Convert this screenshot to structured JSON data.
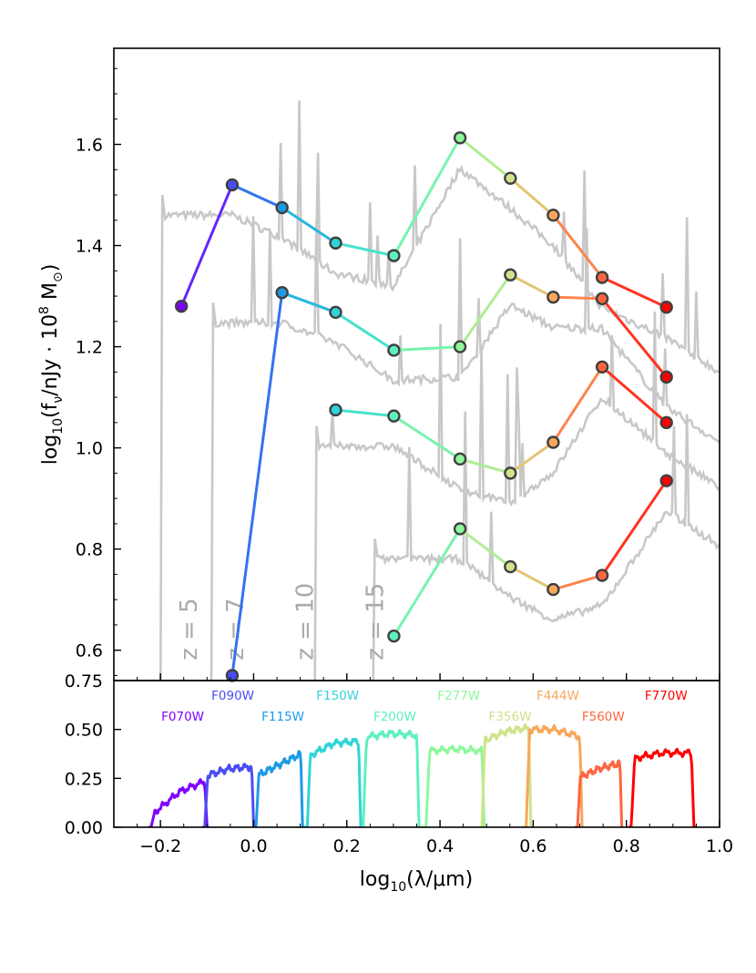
{
  "chart_data": [
    {
      "type": "line",
      "title": "",
      "ylabel": "log10(fν/nJy · 10^8 M⊙)",
      "ylabel_parts": {
        "prefix": "log",
        "sub": "10",
        "paren_open": "(f",
        "nu": "ν",
        "slash": "/nJy · 10",
        "exp": "8",
        "unit": " M",
        "sun": "⊙",
        "paren_close": ")"
      },
      "xlim": [
        -0.3,
        1.0
      ],
      "ylim": [
        0.54,
        1.79
      ],
      "y_ticks": [
        0.6,
        0.8,
        1.0,
        1.2,
        1.4,
        1.6
      ],
      "y_tick_labels": [
        "0.6",
        "0.8",
        "1.0",
        "1.2",
        "1.4",
        "1.6"
      ],
      "redshift_labels": [
        {
          "text": "z = 5",
          "x": -0.14
        },
        {
          "text": "z = 7",
          "x": -0.04
        },
        {
          "text": "z = 10",
          "x": 0.11
        },
        {
          "text": "z = 15",
          "x": 0.26
        }
      ],
      "filter_wavelengths": [
        -0.155,
        -0.046,
        0.061,
        0.176,
        0.301,
        0.443,
        0.551,
        0.643,
        0.748,
        0.886
      ],
      "series": [
        {
          "name": "z = 5",
          "x": [
            -0.155,
            -0.046,
            0.061,
            0.176,
            0.301,
            0.443,
            0.551,
            0.643,
            0.748,
            0.886
          ],
          "y": [
            1.28,
            1.52,
            1.475,
            1.405,
            1.38,
            1.613,
            1.533,
            1.46,
            1.337,
            1.278
          ]
        },
        {
          "name": "z = 7",
          "x": [
            -0.046,
            0.061,
            0.176,
            0.301,
            0.443,
            0.551,
            0.643,
            0.748,
            0.886
          ],
          "y": [
            0.55,
            1.307,
            1.268,
            1.193,
            1.2,
            1.342,
            1.298,
            1.295,
            1.14
          ]
        },
        {
          "name": "z = 10",
          "x": [
            0.176,
            0.301,
            0.443,
            0.551,
            0.643,
            0.748,
            0.886
          ],
          "y": [
            1.075,
            1.063,
            0.978,
            0.95,
            1.011,
            1.16,
            1.05
          ]
        },
        {
          "name": "z = 15",
          "x": [
            0.301,
            0.443,
            0.551,
            0.643,
            0.748,
            0.886
          ],
          "y": [
            0.628,
            0.84,
            0.765,
            0.72,
            0.748,
            0.935
          ]
        }
      ]
    },
    {
      "type": "line",
      "title": "",
      "xlabel": "log10(λ/μm)",
      "xlabel_parts": {
        "prefix": "log",
        "sub": "10",
        "rest": "(λ/μm)"
      },
      "ylabel": "",
      "xlim": [
        -0.3,
        1.0
      ],
      "ylim": [
        0.0,
        0.75
      ],
      "x_ticks": [
        -0.2,
        0.0,
        0.2,
        0.4,
        0.6,
        0.8,
        1.0
      ],
      "x_tick_labels": [
        "−0.2",
        "0.0",
        "0.2",
        "0.4",
        "0.6",
        "0.8",
        "1.0"
      ],
      "y_ticks": [
        0.0,
        0.25,
        0.5,
        0.75
      ],
      "y_tick_labels": [
        "0.00",
        "0.25",
        "0.50",
        "0.75"
      ],
      "legend": "top",
      "series": [
        {
          "name": "F070W",
          "color": "#8000ff",
          "x_range": [
            -0.22,
            -0.1
          ],
          "throughput": [
            0.06,
            0.18,
            0.24
          ],
          "label_row": 2
        },
        {
          "name": "F090W",
          "color": "#4a4cf5",
          "x_range": [
            -0.105,
            0.0
          ],
          "throughput": [
            0.26,
            0.3,
            0.31
          ],
          "label_row": 1
        },
        {
          "name": "F115W",
          "color": "#1c9ae6",
          "x_range": [
            0.005,
            0.105
          ],
          "throughput": [
            0.26,
            0.32,
            0.38
          ],
          "label_row": 2
        },
        {
          "name": "F150W",
          "color": "#2fd4d8",
          "x_range": [
            0.115,
            0.23
          ],
          "throughput": [
            0.36,
            0.43,
            0.44
          ],
          "label_row": 1
        },
        {
          "name": "F200W",
          "color": "#5ff0c0",
          "x_range": [
            0.235,
            0.355
          ],
          "throughput": [
            0.46,
            0.48,
            0.47
          ],
          "label_row": 2
        },
        {
          "name": "F277W",
          "color": "#8ff79c",
          "x_range": [
            0.37,
            0.495
          ],
          "throughput": [
            0.39,
            0.4,
            0.39
          ],
          "label_row": 1
        },
        {
          "name": "F356W",
          "color": "#cfe38a",
          "x_range": [
            0.49,
            0.595
          ],
          "throughput": [
            0.44,
            0.49,
            0.51
          ],
          "label_row": 2
        },
        {
          "name": "F444W",
          "color": "#f8a75a",
          "x_range": [
            0.585,
            0.705
          ],
          "throughput": [
            0.5,
            0.5,
            0.46
          ],
          "label_row": 1
        },
        {
          "name": "F560W",
          "color": "#ff6540",
          "x_range": [
            0.695,
            0.79
          ],
          "throughput": [
            0.25,
            0.3,
            0.33
          ],
          "label_row": 2
        },
        {
          "name": "F770W",
          "color": "#ff0000",
          "x_range": [
            0.81,
            0.945
          ],
          "throughput": [
            0.35,
            0.38,
            0.38
          ],
          "label_row": 1
        }
      ]
    }
  ]
}
